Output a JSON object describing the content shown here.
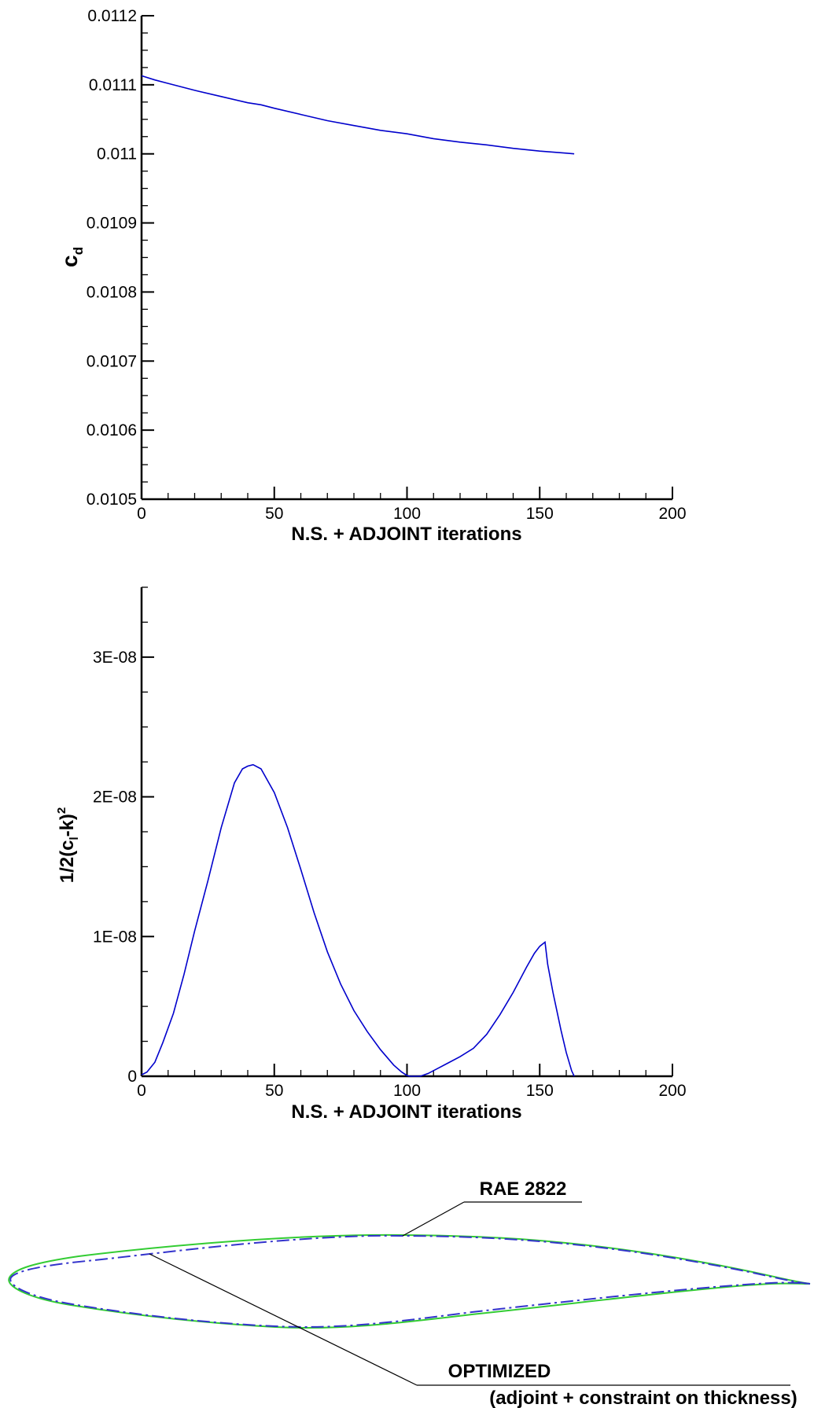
{
  "chart_data": [
    {
      "type": "line",
      "title": "",
      "xlabel": "N.S. + ADJOINT iterations",
      "ylabel": "c",
      "ylabel_sub": "d",
      "xlim": [
        0,
        200
      ],
      "ylim": [
        0.0105,
        0.0112
      ],
      "x_ticks": [
        0,
        50,
        100,
        150,
        200
      ],
      "x_tick_labels": [
        "0",
        "50",
        "100",
        "150",
        "200"
      ],
      "y_ticks": [
        0.0105,
        0.0106,
        0.0107,
        0.0108,
        0.0109,
        0.011,
        0.0111,
        0.0112
      ],
      "y_tick_labels": [
        "0.0105",
        "0.0106",
        "0.0107",
        "0.0108",
        "0.0109",
        "0.011",
        "0.0111",
        "0.0112"
      ],
      "grid": false,
      "series": [
        {
          "color": "#0000cc",
          "x": [
            0,
            5,
            10,
            20,
            30,
            40,
            45,
            50,
            60,
            70,
            80,
            90,
            100,
            110,
            120,
            130,
            140,
            150,
            160,
            163
          ],
          "y": [
            0.011113,
            0.011107,
            0.011102,
            0.011092,
            0.011083,
            0.011074,
            0.011071,
            0.011066,
            0.011057,
            0.011048,
            0.011041,
            0.011034,
            0.011029,
            0.011022,
            0.011017,
            0.011013,
            0.011008,
            0.011004,
            0.011001,
            0.011
          ]
        }
      ]
    },
    {
      "type": "line",
      "title": "",
      "xlabel": "N.S. + ADJOINT iterations",
      "ylabel": "1/2(c",
      "ylabel_sub": "l",
      "ylabel_mid": "-k)",
      "ylabel_sup": "2",
      "xlim": [
        0,
        200
      ],
      "ylim": [
        0,
        3.5e-08
      ],
      "x_ticks": [
        0,
        50,
        100,
        150,
        200
      ],
      "x_tick_labels": [
        "0",
        "50",
        "100",
        "150",
        "200"
      ],
      "y_ticks": [
        0,
        1e-08,
        2e-08,
        3e-08
      ],
      "y_tick_labels": [
        "0",
        "1E-08",
        "2E-08",
        "3E-08"
      ],
      "grid": false,
      "series": [
        {
          "color": "#0000cc",
          "x": [
            0,
            2,
            5,
            8,
            12,
            16,
            20,
            25,
            30,
            35,
            38,
            40,
            42,
            45,
            50,
            55,
            60,
            65,
            70,
            75,
            80,
            85,
            90,
            95,
            98,
            100,
            101,
            103,
            105,
            108,
            112,
            115,
            120,
            125,
            130,
            135,
            140,
            145,
            148,
            150,
            152,
            153,
            155,
            158,
            160,
            162,
            163
          ],
          "y": [
            1e-10,
            3e-10,
            1e-09,
            2.4e-09,
            4.5e-09,
            7.3e-09,
            1.04e-08,
            1.4e-08,
            1.78e-08,
            2.1e-08,
            2.2e-08,
            2.22e-08,
            2.23e-08,
            2.2e-08,
            2.03e-08,
            1.78e-08,
            1.48e-08,
            1.17e-08,
            8.9e-09,
            6.6e-09,
            4.7e-09,
            3.2e-09,
            1.9e-09,
            8e-10,
            3e-10,
            5e-11,
            0,
            0,
            0,
            2e-10,
            6e-10,
            9e-10,
            1.4e-09,
            2e-09,
            3e-09,
            4.4e-09,
            6e-09,
            7.8e-09,
            8.8e-09,
            9.3e-09,
            9.6e-09,
            8e-09,
            6e-09,
            3.3e-09,
            1.7e-09,
            4e-10,
            0
          ]
        }
      ]
    }
  ],
  "profile": {
    "label_rae": "RAE 2822",
    "label_opt": "OPTIMIZED",
    "label_opt_note": "(adjoint + constraint on thickness)",
    "color_rae": "#33cc33",
    "color_opt": "#3333cc"
  }
}
